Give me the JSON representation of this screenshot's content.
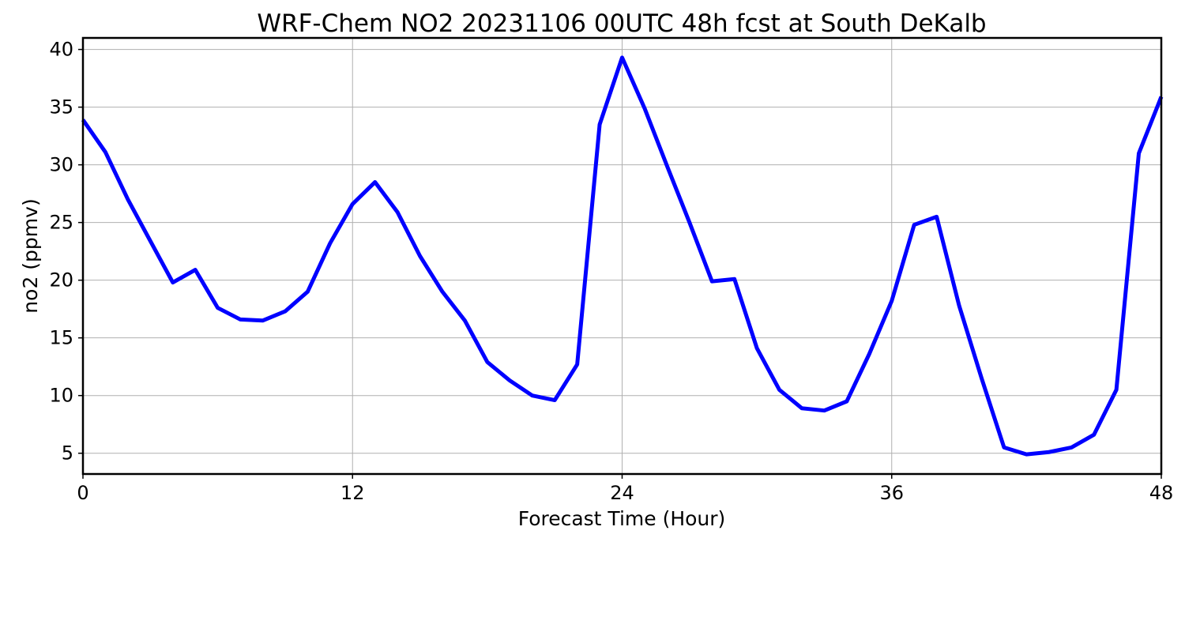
{
  "chart_data": {
    "type": "line",
    "title": "WRF-Chem NO2  20231106 00UTC 48h fcst at South DeKalb",
    "xlabel": "Forecast Time (Hour)",
    "ylabel": "no2  (ppmv)",
    "xlim": [
      0,
      48
    ],
    "ylim": [
      3.2,
      41
    ],
    "xticks": [
      0,
      12,
      24,
      36,
      48
    ],
    "yticks": [
      5,
      10,
      15,
      20,
      25,
      30,
      35,
      40
    ],
    "grid": true,
    "series": [
      {
        "color": "#0000ff",
        "x": [
          0,
          1,
          2,
          3,
          4,
          5,
          6,
          7,
          8,
          9,
          10,
          11,
          12,
          13,
          14,
          15,
          16,
          17,
          18,
          19,
          20,
          21,
          22,
          23,
          24,
          25,
          26,
          27,
          28,
          29,
          30,
          31,
          32,
          33,
          34,
          35,
          36,
          37,
          38,
          39,
          40,
          41,
          42,
          43,
          44,
          45,
          46,
          47,
          48
        ],
        "values": [
          33.9,
          31.1,
          27.0,
          23.4,
          19.8,
          20.9,
          17.6,
          16.6,
          16.5,
          17.3,
          19.0,
          23.2,
          26.6,
          28.5,
          25.9,
          22.1,
          19.0,
          16.5,
          12.9,
          11.3,
          10.0,
          9.6,
          12.7,
          33.5,
          39.3,
          34.9,
          29.9,
          25.0,
          19.9,
          20.1,
          14.1,
          10.5,
          8.9,
          8.7,
          9.5,
          13.6,
          18.2,
          24.8,
          25.5,
          17.8,
          11.5,
          5.5,
          4.9,
          5.1,
          5.5,
          6.6,
          10.5,
          31.0,
          35.9
        ]
      }
    ]
  }
}
